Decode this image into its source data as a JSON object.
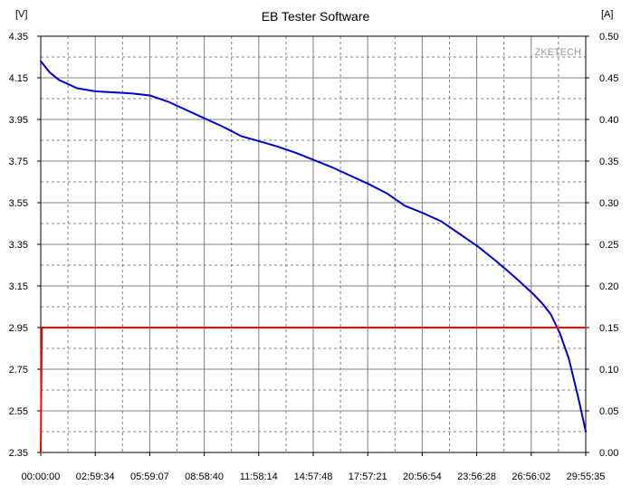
{
  "chart_data": {
    "type": "line",
    "title": "EB Tester Software",
    "watermark": "ZKETECH",
    "left_axis": {
      "unit": "[V]",
      "range": [
        2.35,
        4.35
      ],
      "ticks": [
        "4.35",
        "4.15",
        "3.95",
        "3.75",
        "3.55",
        "3.35",
        "3.15",
        "2.95",
        "2.75",
        "2.55",
        "2.35"
      ]
    },
    "right_axis": {
      "unit": "[A]",
      "range": [
        0.0,
        0.5
      ],
      "ticks": [
        "0.50",
        "0.45",
        "0.40",
        "0.35",
        "0.30",
        "0.25",
        "0.20",
        "0.15",
        "0.10",
        "0.05",
        "0.00"
      ]
    },
    "x_axis": {
      "range_seconds": [
        0,
        107735
      ],
      "ticks": [
        "00:00:00",
        "02:59:34",
        "05:59:07",
        "08:58:40",
        "11:58:14",
        "14:57:48",
        "17:57:21",
        "20:56:54",
        "23:56:28",
        "26:56:02",
        "29:55:35"
      ]
    },
    "grid": true,
    "colors": {
      "voltage": "#0000cc",
      "current": "#ff0000",
      "grid": "#808080"
    },
    "series": [
      {
        "axis": "left",
        "x_hours": [
          0,
          0.5,
          1,
          2,
          3,
          4,
          5,
          6,
          7,
          8,
          9,
          10,
          11,
          12,
          13,
          14,
          15,
          16,
          17,
          18,
          19,
          20,
          21,
          22,
          23,
          24,
          25,
          26,
          27,
          27.5,
          28,
          28.5,
          29,
          29.5,
          29.93
        ],
        "values": [
          4.23,
          4.175,
          4.14,
          4.1,
          4.085,
          4.08,
          4.075,
          4.065,
          4.035,
          3.995,
          3.955,
          3.915,
          3.87,
          3.845,
          3.82,
          3.79,
          3.755,
          3.72,
          3.68,
          3.64,
          3.595,
          3.535,
          3.5,
          3.46,
          3.4,
          3.34,
          3.27,
          3.195,
          3.115,
          3.07,
          3.015,
          2.925,
          2.8,
          2.62,
          2.45
        ]
      },
      {
        "axis": "right",
        "x_hours": [
          0,
          0.06,
          29.93
        ],
        "values": [
          0.0,
          0.15,
          0.15
        ]
      }
    ]
  }
}
